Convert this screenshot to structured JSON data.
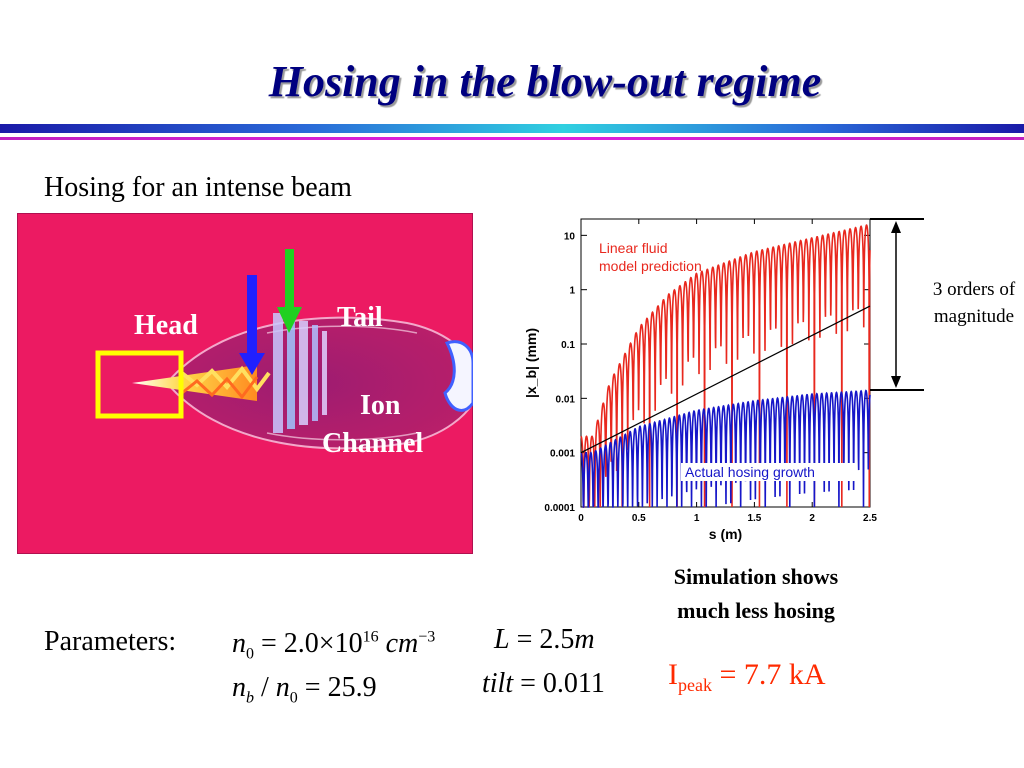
{
  "slide": {
    "title": "Hosing in the blow-out regime",
    "subtitle": "Hosing for an intense beam",
    "sim_labels": {
      "head": "Head",
      "tail": "Tail",
      "ion": "Ion",
      "channel": "Channel"
    },
    "annotation": {
      "line1": "3 orders of",
      "line2": "magnitude"
    },
    "caption": {
      "line1": "Simulation shows",
      "line2": "much less hosing"
    },
    "parameters_label": "Parameters:",
    "equations": {
      "n0_lhs": "n",
      "n0_sub": "0",
      "n0_mid": "= 2.0×10",
      "n0_exp": "16",
      "n0_unit": "cm",
      "n0_unit_exp": "−3",
      "ratio_b": "n",
      "ratio_b_sub": "b",
      "ratio_slash": "/",
      "ratio_n": "n",
      "ratio_n_sub": "0",
      "ratio_rhs": "= 25.9",
      "L_lhs": "L",
      "L_rhs": "= 2.5",
      "L_unit": "m",
      "tilt_lhs": "tilt",
      "tilt_rhs": "= 0.011"
    },
    "ipeak": {
      "symbol": "I",
      "sub": "peak",
      "value": "= 7.7 kA"
    },
    "colors": {
      "title": "#000080",
      "sim_bg": "#ec1a62",
      "linear": "#e8281e",
      "actual": "#1616c8",
      "ipeak": "#ff2a00"
    }
  },
  "chart_data": {
    "type": "line",
    "log_y": true,
    "xlabel": "s (m)",
    "ylabel": "|x_b| (mm)",
    "xlim": [
      0,
      2.5
    ],
    "ylim": [
      0.0001,
      20
    ],
    "x_ticks": [
      "0",
      "0.5",
      "1",
      "1.5",
      "2",
      "2.5"
    ],
    "y_ticks": [
      "0.0001",
      "0.001",
      "0.01",
      "0.1",
      "1",
      "10"
    ],
    "series": [
      {
        "name": "Linear fluid model prediction",
        "label_line1": "Linear fluid",
        "label_line2": "model prediction",
        "envelope_peaks": [
          [
            0.1,
            0.002
          ],
          [
            0.25,
            0.02
          ],
          [
            0.5,
            0.2
          ],
          [
            0.75,
            0.8
          ],
          [
            1.0,
            2.0
          ],
          [
            1.5,
            5.0
          ],
          [
            2.0,
            9.0
          ],
          [
            2.5,
            16.0
          ]
        ]
      },
      {
        "name": "Actual hosing growth",
        "envelope_peaks": [
          [
            0.1,
            0.001
          ],
          [
            0.5,
            0.003
          ],
          [
            1.0,
            0.006
          ],
          [
            1.5,
            0.009
          ],
          [
            2.0,
            0.012
          ],
          [
            2.5,
            0.014
          ]
        ]
      },
      {
        "name": "reference",
        "points": [
          [
            0,
            0.001
          ],
          [
            2.5,
            0.5
          ]
        ]
      }
    ]
  }
}
